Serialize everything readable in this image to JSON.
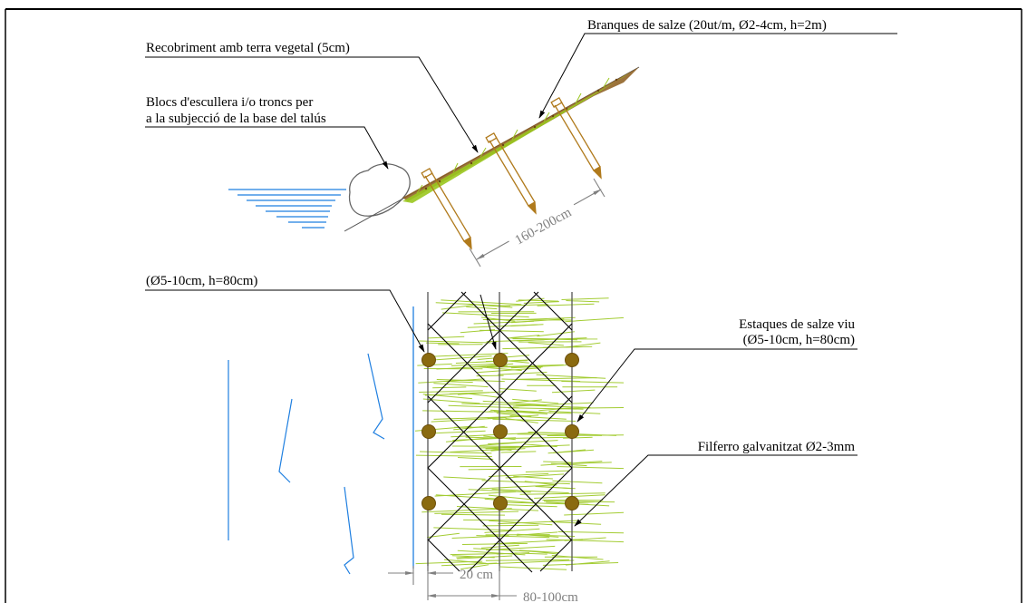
{
  "labels": {
    "willow_branches": "Branques de salze (20ut/m, Ø2-4cm, h=2m)",
    "topsoil_cover": "Recobriment amb terra vegetal (5cm)",
    "riprap_line1": "Blocs d'escullera i/o troncs per",
    "riprap_line2": "a la subjecció de la base del talús",
    "stake_dims_left": "(Ø5-10cm, h=80cm)",
    "live_stakes_line1": "Estaques de salze viu",
    "live_stakes_line2": "(Ø5-10cm, h=80cm)",
    "galvanized_wire": "Filferro galvanitzat Ø2-3mm"
  },
  "dimensions": {
    "stake_spacing_slope": "160-200cm",
    "stake_spacing_small": "20 cm",
    "stake_spacing_plan": "80-100cm"
  },
  "colors": {
    "frame": "#000000",
    "water": "#1f7fe0",
    "vegetation": "#9ac71e",
    "stake": "#b07a1c",
    "stake_head": "#8a6a10",
    "dimension": "#808080",
    "soil": "#8b5a1a"
  }
}
